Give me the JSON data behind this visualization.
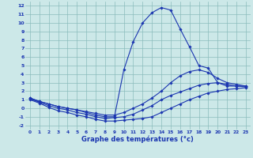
{
  "title": "Graphe des températures (°c)",
  "hours": [
    0,
    1,
    2,
    3,
    4,
    5,
    6,
    7,
    8,
    9,
    10,
    11,
    12,
    13,
    14,
    15,
    16,
    17,
    18,
    19,
    20,
    21,
    22,
    23
  ],
  "line1": [
    1.0,
    0.6,
    0.1,
    -0.3,
    -0.5,
    -0.8,
    -1.0,
    -1.3,
    -1.5,
    -1.5,
    -1.4,
    -1.3,
    -1.2,
    -1.0,
    -0.5,
    0.0,
    0.5,
    1.0,
    1.4,
    1.8,
    2.0,
    2.2,
    2.3,
    2.4
  ],
  "line2": [
    1.1,
    0.7,
    0.3,
    0.0,
    -0.2,
    -0.5,
    -0.7,
    -1.0,
    -1.2,
    -1.1,
    -1.0,
    -0.7,
    -0.2,
    0.3,
    1.0,
    1.5,
    1.9,
    2.3,
    2.7,
    2.9,
    3.0,
    2.8,
    2.6,
    2.5
  ],
  "line3": [
    1.2,
    0.8,
    0.5,
    0.2,
    0.0,
    -0.2,
    -0.4,
    -0.6,
    -0.8,
    -0.8,
    -0.5,
    0.0,
    0.5,
    1.2,
    2.0,
    3.0,
    3.8,
    4.3,
    4.5,
    4.2,
    3.5,
    3.0,
    2.8,
    2.6
  ],
  "line4": [
    1.2,
    0.8,
    0.5,
    0.2,
    0.0,
    -0.2,
    -0.5,
    -0.8,
    -1.0,
    -1.0,
    4.5,
    7.8,
    10.0,
    11.2,
    11.8,
    11.5,
    9.3,
    7.2,
    5.0,
    4.7,
    3.0,
    2.6,
    2.6,
    2.6
  ],
  "xlim": [
    -0.5,
    23.5
  ],
  "ylim": [
    -2.5,
    12.5
  ],
  "yticks": [
    -2,
    -1,
    0,
    1,
    2,
    3,
    4,
    5,
    6,
    7,
    8,
    9,
    10,
    11,
    12
  ],
  "xticks": [
    0,
    1,
    2,
    3,
    4,
    5,
    6,
    7,
    8,
    9,
    10,
    11,
    12,
    13,
    14,
    15,
    16,
    17,
    18,
    19,
    20,
    21,
    22,
    23
  ],
  "line_color": "#1a35b0",
  "grid_color": "#8bbcbc",
  "bg_color": "#cce8e8",
  "marker": "D",
  "marker_size": 1.8,
  "line_width": 0.8
}
